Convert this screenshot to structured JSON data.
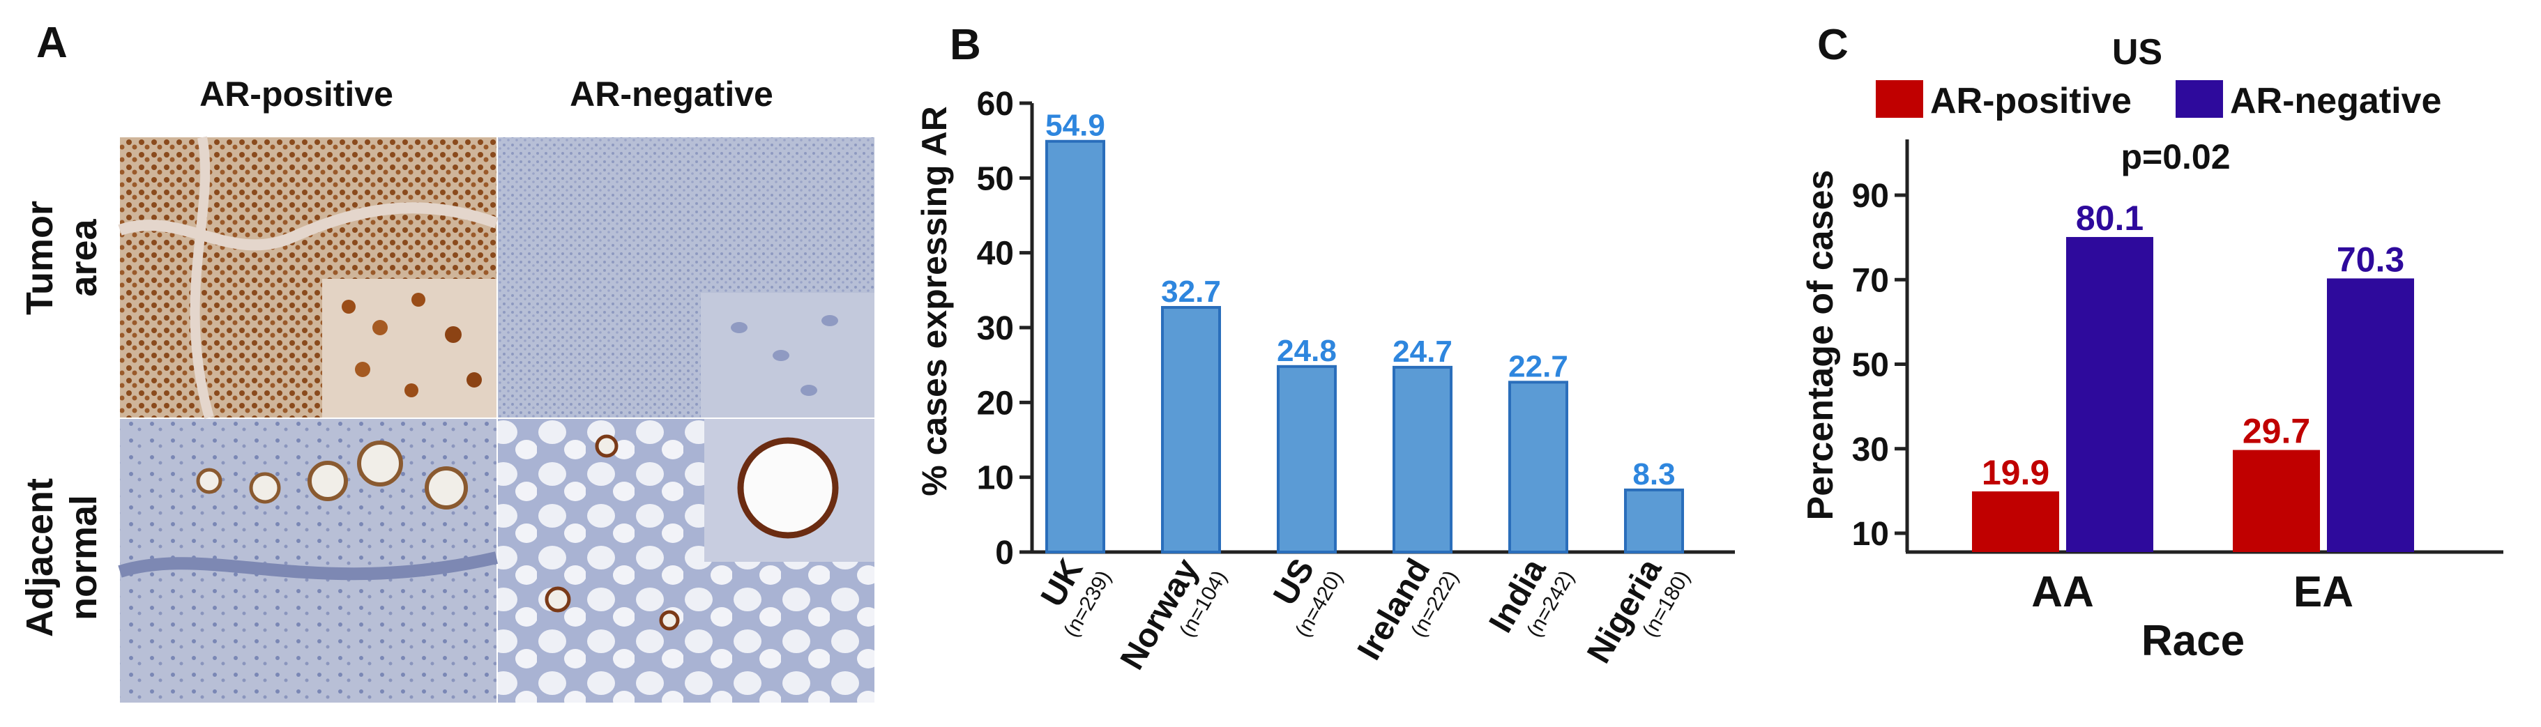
{
  "panel_a": {
    "letter": "A",
    "columns": [
      "AR-positive",
      "AR-negative"
    ],
    "rows": [
      {
        "line1": "Tumor",
        "line2": "area"
      },
      {
        "line1": "Adjacent",
        "line2": "normal"
      }
    ]
  },
  "panel_b": {
    "letter": "B",
    "countries": [
      {
        "name": "UK",
        "n": "(n=239)"
      },
      {
        "name": "Norway",
        "n": "(n=104)"
      },
      {
        "name": "US",
        "n": "(n=420)"
      },
      {
        "name": "Ireland",
        "n": "(n=222)"
      },
      {
        "name": "India",
        "n": "(n=242)"
      },
      {
        "name": "Nigeria",
        "n": "(n=180)"
      }
    ]
  },
  "panel_c": {
    "letter": "C",
    "title": "US",
    "pvalue": "p=0.02"
  },
  "chart_data": [
    {
      "type": "bar",
      "panel": "B",
      "categories": [
        "UK",
        "Norway",
        "US",
        "Ireland",
        "India",
        "Nigeria"
      ],
      "values": [
        54.9,
        32.7,
        24.8,
        24.7,
        22.7,
        8.3
      ],
      "data_labels": [
        "54.9",
        "32.7",
        "24.8",
        "24.7",
        "22.7",
        "8.3"
      ],
      "ylabel": "% cases expressing AR",
      "ylim": [
        0,
        60
      ],
      "yticks": [
        "0",
        "10",
        "20",
        "30",
        "40",
        "50",
        "60"
      ],
      "grid": false,
      "colors": {
        "bar": "#5b9bd5",
        "bar_edge": "#2a6ebb",
        "label": "#2e86de"
      }
    },
    {
      "type": "bar",
      "panel": "C",
      "categories": [
        "AA",
        "EA"
      ],
      "xlabel": "Race",
      "ylabel": "Percentage of cases",
      "ylim": [
        10,
        100
      ],
      "yticks": [
        "10",
        "30",
        "50",
        "70",
        "90"
      ],
      "legend_position": "top",
      "grid": false,
      "series": [
        {
          "name": "AR-positive",
          "values": [
            19.9,
            29.7
          ],
          "labels": [
            "19.9",
            "29.7"
          ],
          "color": "#c00000"
        },
        {
          "name": "AR-negative",
          "values": [
            80.1,
            70.3
          ],
          "labels": [
            "80.1",
            "70.3"
          ],
          "color": "#2e0a9c"
        }
      ]
    }
  ]
}
